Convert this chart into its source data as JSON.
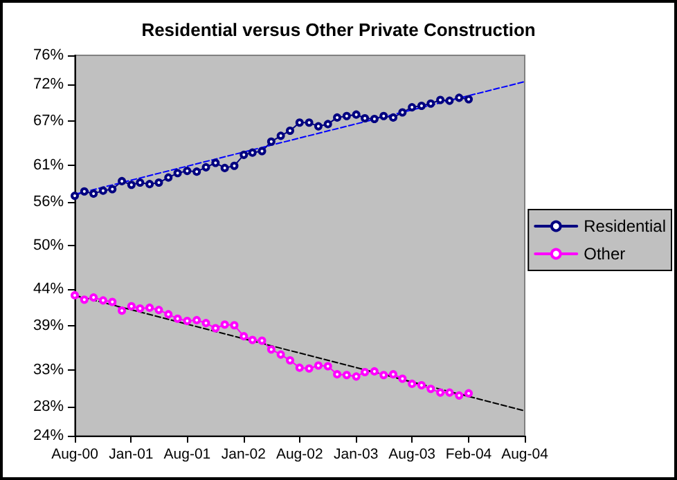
{
  "chart_data": {
    "type": "line",
    "title": "Residential versus Other Private Construction",
    "x": [
      "2000-08",
      "2000-09",
      "2000-10",
      "2000-11",
      "2000-12",
      "2001-01",
      "2001-02",
      "2001-03",
      "2001-04",
      "2001-05",
      "2001-06",
      "2001-07",
      "2001-08",
      "2001-09",
      "2001-10",
      "2001-11",
      "2001-12",
      "2002-01",
      "2002-02",
      "2002-03",
      "2002-04",
      "2002-05",
      "2002-06",
      "2002-07",
      "2002-08",
      "2002-09",
      "2002-10",
      "2002-11",
      "2002-12",
      "2003-01",
      "2003-02",
      "2003-03",
      "2003-04",
      "2003-05",
      "2003-06",
      "2003-07",
      "2003-08",
      "2003-09",
      "2003-10",
      "2003-11",
      "2003-12",
      "2004-01",
      "2004-02"
    ],
    "series": [
      {
        "name": "Residential",
        "color": "#000080",
        "values": [
          56.8,
          57.4,
          57.1,
          57.5,
          57.7,
          58.8,
          58.3,
          58.6,
          58.4,
          58.6,
          59.3,
          59.9,
          60.2,
          60.1,
          60.7,
          61.3,
          60.6,
          60.9,
          62.4,
          62.7,
          62.9,
          64.2,
          65.0,
          65.7,
          66.8,
          66.8,
          66.3,
          66.6,
          67.5,
          67.7,
          67.9,
          67.4,
          67.3,
          67.7,
          67.5,
          68.2,
          68.9,
          69.1,
          69.4,
          69.9,
          69.8,
          70.2,
          70.0
        ]
      },
      {
        "name": "Other",
        "color": "#ff00ff",
        "values": [
          43.2,
          42.6,
          42.9,
          42.5,
          42.3,
          41.1,
          41.7,
          41.4,
          41.5,
          41.2,
          40.6,
          40.0,
          39.7,
          39.8,
          39.4,
          38.7,
          39.2,
          39.1,
          37.6,
          37.1,
          37.0,
          35.8,
          35.1,
          34.3,
          33.3,
          33.2,
          33.6,
          33.5,
          32.4,
          32.3,
          32.1,
          32.7,
          32.8,
          32.3,
          32.4,
          31.8,
          31.1,
          30.9,
          30.4,
          29.9,
          29.9,
          29.5,
          29.8
        ]
      },
      {
        "type": "line",
        "color": "#0000ff",
        "line_style": "dashed",
        "marker": "none",
        "x": [
          "2000-08",
          "2004-08"
        ],
        "values": [
          57.0,
          72.4
        ]
      },
      {
        "type": "line",
        "color": "#000000",
        "line_style": "dashed",
        "marker": "none",
        "x": [
          "2000-08",
          "2004-08"
        ],
        "values": [
          43.2,
          27.4
        ]
      }
    ],
    "xlim": [
      "2000-08",
      "2004-08"
    ],
    "xticks": [
      {
        "value": "2000-08",
        "label": "Aug-00"
      },
      {
        "value": "2001-01-31",
        "label": "Jan-01"
      },
      {
        "value": "2001-08-01",
        "label": "Aug-01"
      },
      {
        "value": "2002-01-31",
        "label": "Jan-02"
      },
      {
        "value": "2002-08-01",
        "label": "Aug-02"
      },
      {
        "value": "2003-01-31",
        "label": "Jan-03"
      },
      {
        "value": "2003-08-01",
        "label": "Aug-03"
      },
      {
        "value": "2004-02-01",
        "label": "Feb-04"
      },
      {
        "value": "2004-08",
        "label": "Aug-04"
      }
    ],
    "ylim": [
      24,
      76
    ],
    "yticks": [
      {
        "value": 24,
        "label": "24%"
      },
      {
        "value": 28,
        "label": "28%"
      },
      {
        "value": 33,
        "label": "33%"
      },
      {
        "value": 39,
        "label": "39%"
      },
      {
        "value": 44,
        "label": "44%"
      },
      {
        "value": 50,
        "label": "50%"
      },
      {
        "value": 56,
        "label": "56%"
      },
      {
        "value": 61,
        "label": "61%"
      },
      {
        "value": 67,
        "label": "67%"
      },
      {
        "value": 72,
        "label": "72%"
      },
      {
        "value": 76,
        "label": "76%"
      }
    ],
    "marker": "circle",
    "line_style": "solid",
    "grid": false,
    "legend": "right"
  }
}
